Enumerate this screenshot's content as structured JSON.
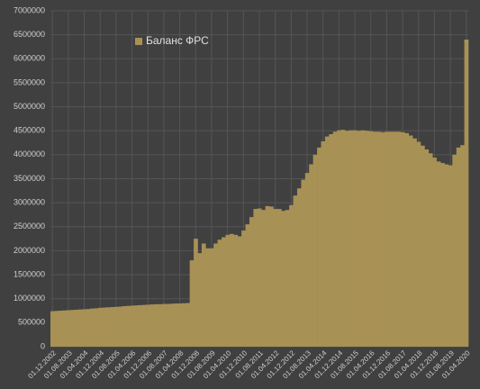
{
  "chart_data": {
    "type": "bar",
    "series": [
      {
        "name": "Баланс ФРС",
        "color": "#a89155",
        "values": [
          740000,
          745000,
          750000,
          755000,
          760000,
          765000,
          770000,
          775000,
          780000,
          785000,
          795000,
          800000,
          810000,
          815000,
          820000,
          825000,
          830000,
          835000,
          845000,
          850000,
          855000,
          860000,
          865000,
          870000,
          875000,
          880000,
          885000,
          885000,
          890000,
          890000,
          895000,
          900000,
          900000,
          905000,
          910000,
          1800000,
          2250000,
          1950000,
          2150000,
          2050000,
          2050000,
          2150000,
          2230000,
          2280000,
          2330000,
          2350000,
          2330000,
          2300000,
          2420000,
          2550000,
          2700000,
          2870000,
          2880000,
          2850000,
          2930000,
          2920000,
          2870000,
          2870000,
          2830000,
          2850000,
          2950000,
          3150000,
          3300000,
          3480000,
          3620000,
          3800000,
          4000000,
          4150000,
          4280000,
          4380000,
          4430000,
          4480000,
          4510000,
          4520000,
          4500000,
          4510000,
          4510000,
          4500000,
          4510000,
          4500000,
          4490000,
          4480000,
          4480000,
          4470000,
          4480000,
          4480000,
          4480000,
          4480000,
          4470000,
          4450000,
          4400000,
          4340000,
          4270000,
          4190000,
          4110000,
          4030000,
          3940000,
          3860000,
          3830000,
          3800000,
          3780000,
          4000000,
          4150000,
          4200000,
          6400000
        ]
      }
    ],
    "categories": [
      "01.12.2002",
      null,
      null,
      null,
      "01.08.2003",
      null,
      null,
      null,
      "01.04.2004",
      null,
      null,
      null,
      "01.12.2004",
      null,
      null,
      null,
      "01.08.2005",
      null,
      null,
      null,
      "01.04.2006",
      null,
      null,
      null,
      "01.12.2006",
      null,
      null,
      null,
      "01.08.2007",
      null,
      null,
      null,
      "01.04.2008",
      null,
      null,
      null,
      "01.12.2008",
      null,
      null,
      null,
      "01.08.2009",
      null,
      null,
      null,
      "01.04.2010",
      null,
      null,
      null,
      "01.12.2010",
      null,
      null,
      null,
      "01.08.2011",
      null,
      null,
      null,
      "01.04.2012",
      null,
      null,
      null,
      "01.12.2012",
      null,
      null,
      null,
      "01.08.2013",
      null,
      null,
      null,
      "01.04.2014",
      null,
      null,
      null,
      "01.12.2014",
      null,
      null,
      null,
      "01.08.2015",
      null,
      null,
      null,
      "01.04.2016",
      null,
      null,
      null,
      "01.12.2016",
      null,
      null,
      null,
      "01.08.2017",
      null,
      null,
      null,
      "01.04.2018",
      null,
      null,
      null,
      "01.12.2018",
      null,
      null,
      null,
      "01.08.2019",
      null,
      null,
      null,
      "01.04.2020"
    ],
    "ylim": [
      0,
      7000000
    ],
    "yticks": [
      0,
      500000,
      1000000,
      1500000,
      2000000,
      2500000,
      3000000,
      3500000,
      4000000,
      4500000,
      5000000,
      5500000,
      6000000,
      6500000,
      7000000
    ],
    "grid": true,
    "legend": "top-left"
  }
}
